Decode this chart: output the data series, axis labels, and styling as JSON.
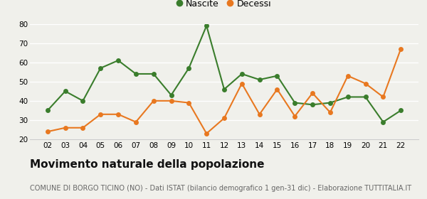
{
  "years": [
    "02",
    "03",
    "04",
    "05",
    "06",
    "07",
    "08",
    "09",
    "10",
    "11",
    "12",
    "13",
    "14",
    "15",
    "16",
    "17",
    "18",
    "19",
    "20",
    "21",
    "22"
  ],
  "nascite": [
    35,
    45,
    40,
    57,
    61,
    54,
    54,
    43,
    57,
    79,
    46,
    54,
    51,
    53,
    39,
    38,
    39,
    42,
    42,
    29,
    35
  ],
  "decessi": [
    24,
    26,
    26,
    33,
    33,
    29,
    40,
    40,
    39,
    23,
    31,
    49,
    33,
    46,
    32,
    44,
    34,
    53,
    49,
    42,
    67
  ],
  "nascite_color": "#3a7d2c",
  "decessi_color": "#e87820",
  "background_color": "#f0f0eb",
  "ylim": [
    20,
    80
  ],
  "yticks": [
    20,
    30,
    40,
    50,
    60,
    70,
    80
  ],
  "title": "Movimento naturale della popolazione",
  "subtitle": "COMUNE DI BORGO TICINO (NO) - Dati ISTAT (bilancio demografico 1 gen-31 dic) - Elaborazione TUTTITALIA.IT",
  "legend_nascite": "Nascite",
  "legend_decessi": "Decessi",
  "title_fontsize": 11,
  "subtitle_fontsize": 7,
  "marker_size": 5,
  "linewidth": 1.5,
  "tick_fontsize": 7.5
}
